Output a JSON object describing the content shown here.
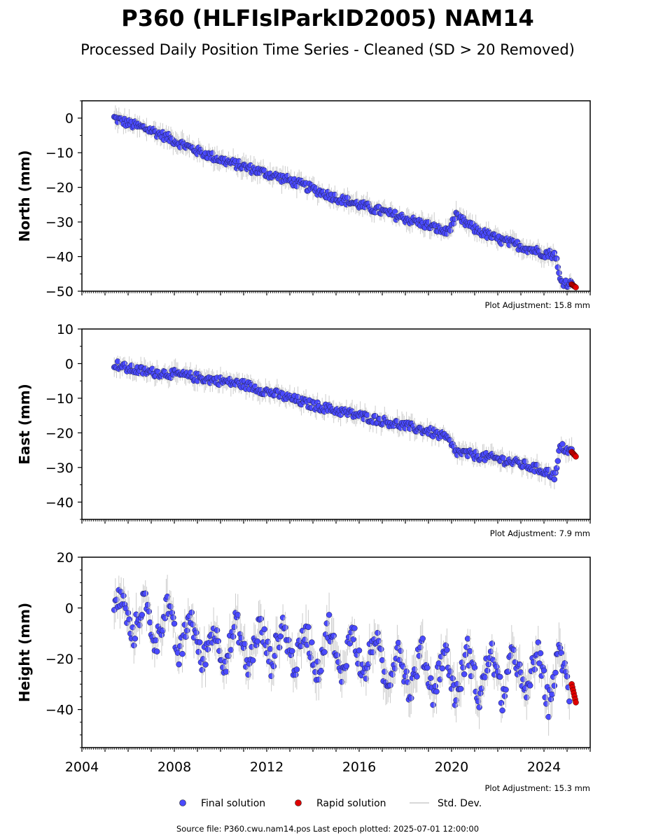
{
  "title": "P360 (HLFIslParkID2005) NAM14",
  "subtitle": "Processed Daily Position Time Series - Cleaned (SD > 20 Removed)",
  "source_line": "Source file: P360.cwu.nam14.pos  Last epoch plotted: 2025-07-01 12:00:00",
  "legend": {
    "final": "Final solution",
    "rapid": "Rapid solution",
    "std": "Std. Dev."
  },
  "colors": {
    "final": "#4a4aff",
    "rapid": "#e00000",
    "std": "#cccccc",
    "axis": "#000000"
  },
  "chart_data": [
    {
      "type": "scatter",
      "ylabel": "North (mm)",
      "ylim": [
        -50,
        5
      ],
      "yticks": [
        0,
        -10,
        -20,
        -30,
        -40,
        -50
      ],
      "xlim": [
        2004,
        2026
      ],
      "adjustment": "Plot Adjustment: 15.8 mm",
      "series": [
        {
          "name": "Final solution",
          "x": [
            2005.4,
            2006.0,
            2007.0,
            2008.0,
            2009.0,
            2010.0,
            2011.0,
            2012.0,
            2013.0,
            2014.0,
            2015.0,
            2016.0,
            2017.0,
            2018.0,
            2019.0,
            2019.8,
            2020.2,
            2021.0,
            2022.0,
            2023.0,
            2024.0,
            2024.5,
            2024.7,
            2025.2
          ],
          "y": [
            0,
            -1.5,
            -3.5,
            -6.5,
            -9.5,
            -12,
            -14,
            -16,
            -18,
            -20.5,
            -23,
            -25,
            -27,
            -29,
            -31,
            -33,
            -28.5,
            -32,
            -35,
            -37,
            -39,
            -39.5,
            -47,
            -48
          ]
        },
        {
          "name": "Rapid solution",
          "x": [
            2025.2,
            2025.4
          ],
          "y": [
            -48,
            -49
          ]
        }
      ]
    },
    {
      "type": "scatter",
      "ylabel": "East (mm)",
      "ylim": [
        -45,
        10
      ],
      "yticks": [
        10,
        0,
        -10,
        -20,
        -30,
        -40
      ],
      "xlim": [
        2004,
        2026
      ],
      "adjustment": "Plot Adjustment: 7.9 mm",
      "series": [
        {
          "name": "Final solution",
          "x": [
            2005.4,
            2006.0,
            2007.0,
            2008.0,
            2009.0,
            2010.0,
            2011.0,
            2012.0,
            2013.0,
            2014.0,
            2015.0,
            2016.0,
            2017.0,
            2018.0,
            2019.0,
            2019.8,
            2020.2,
            2021.0,
            2022.0,
            2023.0,
            2024.0,
            2024.5,
            2024.7,
            2025.2
          ],
          "y": [
            0,
            -1.5,
            -2.5,
            -3,
            -4,
            -5,
            -6,
            -8,
            -10,
            -12,
            -13.5,
            -15,
            -16.5,
            -18,
            -19.5,
            -21.5,
            -25.5,
            -26.5,
            -27.5,
            -29,
            -31,
            -32.5,
            -24,
            -25.5
          ]
        },
        {
          "name": "Rapid solution",
          "x": [
            2025.2,
            2025.4
          ],
          "y": [
            -25.5,
            -27
          ]
        }
      ]
    },
    {
      "type": "scatter",
      "ylabel": "Height (mm)",
      "ylim": [
        -55,
        20
      ],
      "yticks": [
        20,
        0,
        -20,
        -40
      ],
      "xlim": [
        2004,
        2026
      ],
      "xticks": [
        2004,
        2008,
        2012,
        2016,
        2020,
        2024
      ],
      "adjustment": "Plot Adjustment: 15.3 mm",
      "series": [
        {
          "name": "Final solution",
          "x": [
            2005.4,
            2005.7,
            2006.2,
            2006.7,
            2007.2,
            2007.7,
            2008.2,
            2008.7,
            2009.2,
            2009.7,
            2010.2,
            2010.7,
            2011.2,
            2011.7,
            2012.2,
            2012.7,
            2013.2,
            2013.7,
            2014.2,
            2014.7,
            2015.2,
            2015.7,
            2016.2,
            2016.7,
            2017.2,
            2017.7,
            2018.2,
            2018.7,
            2019.2,
            2019.7,
            2020.2,
            2020.7,
            2021.2,
            2021.7,
            2022.2,
            2022.7,
            2023.2,
            2023.7,
            2024.2,
            2024.7,
            2025.1
          ],
          "y": [
            0,
            5,
            -12,
            4,
            -15,
            3,
            -20,
            -2,
            -22,
            -8,
            -22,
            -5,
            -24,
            -6,
            -22,
            -6,
            -24,
            -8,
            -26,
            -6,
            -28,
            -8,
            -28,
            -10,
            -32,
            -14,
            -34,
            -15,
            -34,
            -16,
            -36,
            -16,
            -36,
            -16,
            -36,
            -16,
            -36,
            -16,
            -38,
            -16,
            -34
          ]
        },
        {
          "name": "Rapid solution",
          "x": [
            2025.2,
            2025.4
          ],
          "y": [
            -30,
            -38
          ]
        }
      ]
    }
  ]
}
